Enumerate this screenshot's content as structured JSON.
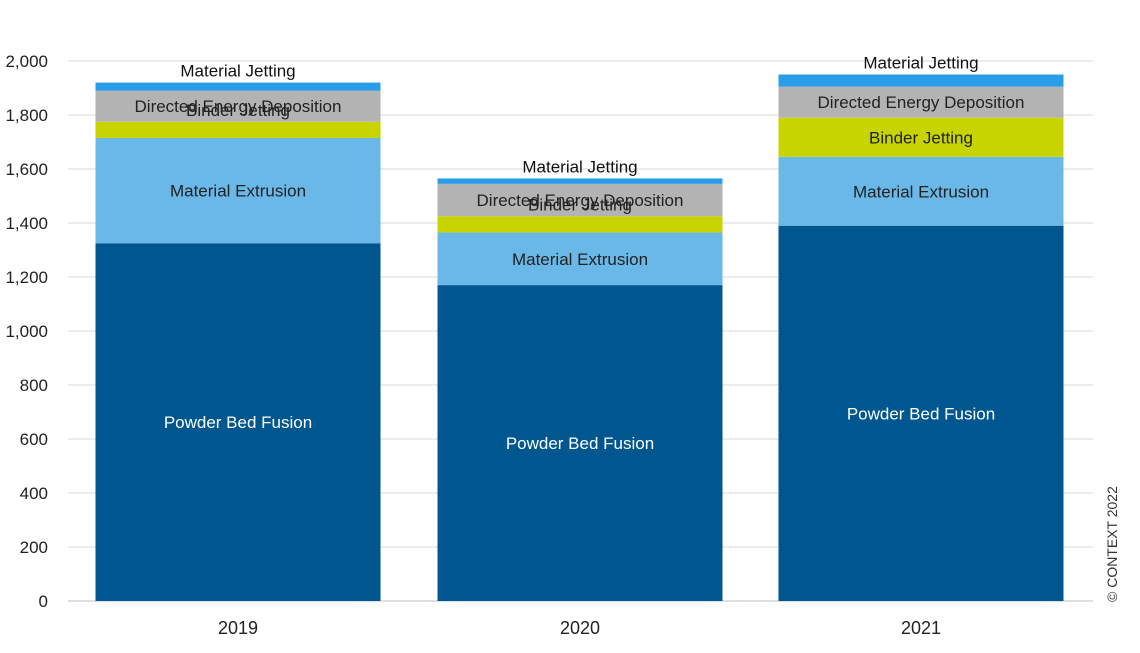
{
  "chart_data": {
    "type": "bar",
    "stacked": true,
    "categories": [
      "2019",
      "2020",
      "2021"
    ],
    "series": [
      {
        "name": "Powder Bed Fusion",
        "color": "#00568f",
        "label_color": "#ffffff",
        "values": [
          1325,
          1170,
          1390
        ]
      },
      {
        "name": "Material Extrusion",
        "color": "#69b8e7",
        "label_color": "#222222",
        "values": [
          390,
          195,
          255
        ]
      },
      {
        "name": "Binder Jetting",
        "color": "#c8d400",
        "label_color": "#222222",
        "values": [
          60,
          60,
          145
        ]
      },
      {
        "name": "Directed Energy Deposition",
        "color": "#b3b3b3",
        "label_color": "#222222",
        "values": [
          115,
          120,
          115
        ]
      },
      {
        "name": "Material Jetting",
        "color": "#2a9de8",
        "label_color": "#111111",
        "values": [
          30,
          20,
          45
        ]
      }
    ],
    "ylim": [
      0,
      2000
    ],
    "yticks": [
      0,
      200,
      400,
      600,
      800,
      1000,
      1200,
      1400,
      1600,
      1800,
      2000
    ],
    "ytick_labels": [
      "0",
      "200",
      "400",
      "600",
      "800",
      "1,000",
      "1,200",
      "1,400",
      "1,600",
      "1,800",
      "2,000"
    ],
    "grid": true,
    "grid_color": "#d9d9d9",
    "xlabel": "",
    "ylabel": "",
    "title": "",
    "copyright": "© CONTEXT 2022"
  }
}
